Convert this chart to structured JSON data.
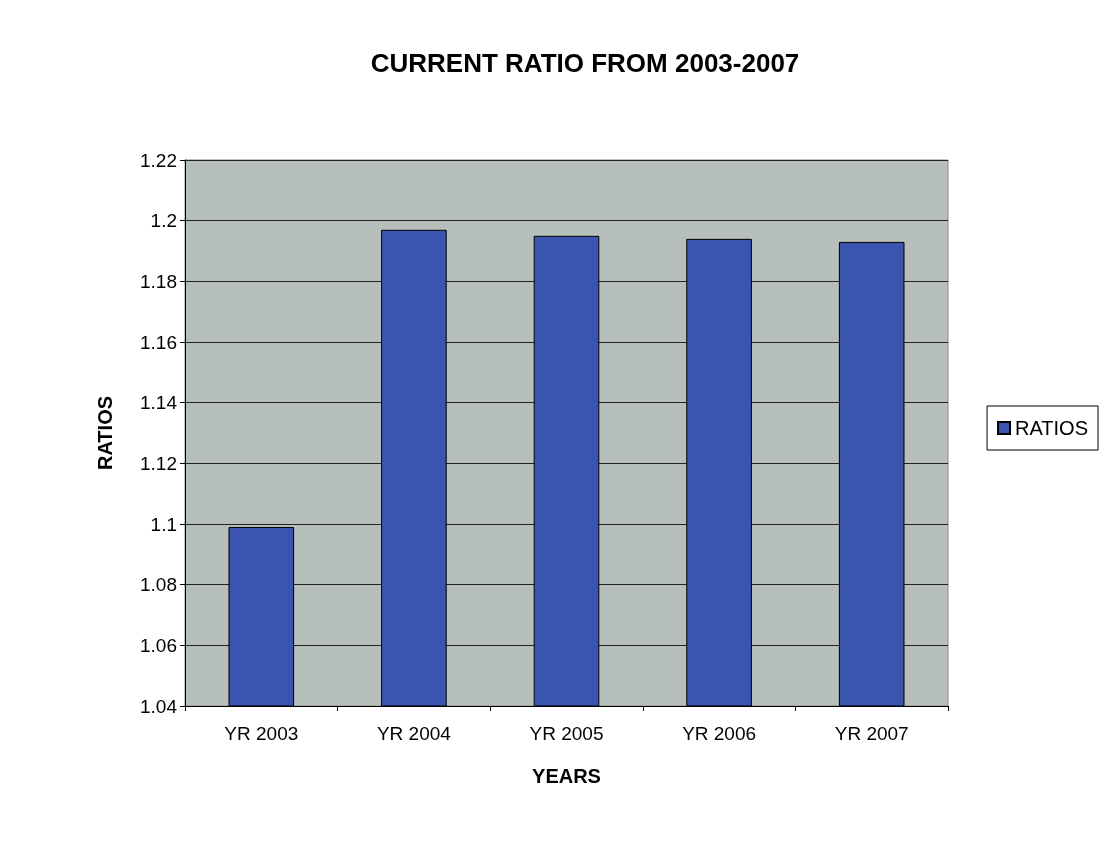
{
  "chart_data": {
    "type": "bar",
    "title": "CURRENT RATIO FROM 2003-2007",
    "xlabel": "YEARS",
    "ylabel": "RATIOS",
    "categories": [
      "YR 2003",
      "YR 2004",
      "YR 2005",
      "YR 2006",
      "YR 2007"
    ],
    "series": [
      {
        "name": "RATIOS",
        "color": "#3b54b0",
        "values": [
          1.099,
          1.197,
          1.195,
          1.194,
          1.193
        ]
      }
    ],
    "ylim": [
      1.04,
      1.22
    ],
    "yticks": [
      1.04,
      1.06,
      1.08,
      1.1,
      1.12,
      1.14,
      1.16,
      1.18,
      1.2,
      1.22
    ],
    "grid": "y",
    "legend": "right"
  }
}
